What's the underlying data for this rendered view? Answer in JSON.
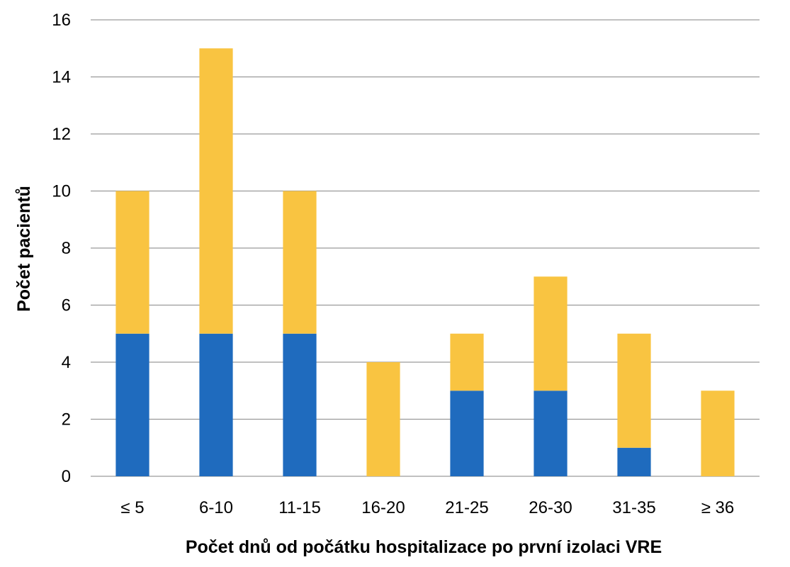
{
  "chart_data": {
    "type": "bar",
    "stacked": true,
    "categories": [
      "≤ 5",
      "6-10",
      "11-15",
      "16-20",
      "21-25",
      "26-30",
      "31-35",
      "≥ 36"
    ],
    "series": [
      {
        "values": [
          5,
          5,
          5,
          0,
          3,
          3,
          1,
          0
        ],
        "color": "#1F6BBE"
      },
      {
        "values": [
          5,
          10,
          5,
          4,
          2,
          4,
          4,
          3
        ],
        "color": "#F9C441"
      }
    ],
    "xlabel": "Počet dnů od počátku hospitalizace po první izolaci VRE",
    "ylabel": "Počet pacientů",
    "ylim": [
      0,
      16
    ],
    "yticks": [
      0,
      2,
      4,
      6,
      8,
      10,
      12,
      14,
      16
    ],
    "grid": true,
    "legend": "none",
    "gridline_color": "#9a9a9a"
  }
}
